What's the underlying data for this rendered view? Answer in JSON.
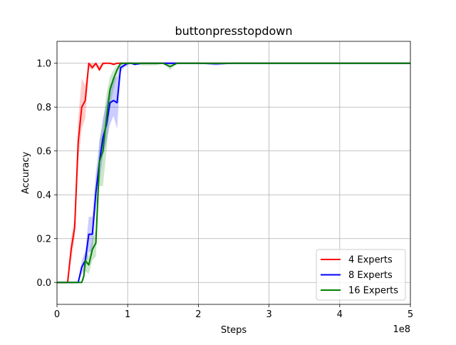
{
  "chart_data": {
    "type": "line",
    "title": "buttonpresstopdown",
    "xlabel": "Steps",
    "ylabel": "Accuracy",
    "x_scale_label": "1e8",
    "x_unit_multiplier": 100000000,
    "xlim": [
      0,
      5
    ],
    "ylim": [
      -0.1,
      1.1
    ],
    "xticks": [
      0,
      1,
      2,
      3,
      4,
      5
    ],
    "xtick_labels": [
      "0",
      "1",
      "2",
      "3",
      "4",
      "5"
    ],
    "yticks": [
      0.0,
      0.2,
      0.4,
      0.6,
      0.8,
      1.0
    ],
    "ytick_labels": [
      "0.0",
      "0.2",
      "0.4",
      "0.6",
      "0.8",
      "1.0"
    ],
    "grid": true,
    "legend_position": "lower-right",
    "series": [
      {
        "name": "4 Experts",
        "color": "#ff0000",
        "x": [
          0,
          0.15,
          0.2,
          0.25,
          0.3,
          0.35,
          0.4,
          0.45,
          0.5,
          0.55,
          0.6,
          0.65,
          0.7,
          0.75,
          0.8,
          0.85,
          0.9,
          0.95,
          1.0,
          1.5,
          2.0,
          2.5,
          3.0,
          3.5,
          4.0,
          4.5,
          5.0
        ],
        "y": [
          0,
          0,
          0.15,
          0.25,
          0.64,
          0.8,
          0.83,
          1.0,
          0.98,
          1.0,
          0.97,
          1.0,
          1.0,
          1.0,
          0.995,
          1.0,
          1.0,
          1.0,
          1.0,
          1.0,
          1.0,
          1.0,
          1.0,
          1.0,
          1.0,
          1.0,
          1.0
        ],
        "y_lower": [
          0,
          0,
          0.1,
          0.2,
          0.55,
          0.7,
          0.75,
          0.98,
          0.97,
          0.99,
          0.96,
          0.99,
          1.0,
          1.0,
          0.99,
          1.0,
          1.0,
          1.0,
          1.0,
          1.0,
          1.0,
          1.0,
          1.0,
          1.0,
          1.0,
          1.0,
          1.0
        ],
        "y_upper": [
          0,
          0,
          0.2,
          0.3,
          0.75,
          0.93,
          0.9,
          1.0,
          1.0,
          1.0,
          0.99,
          1.0,
          1.0,
          1.0,
          1.0,
          1.0,
          1.0,
          1.0,
          1.0,
          1.0,
          1.0,
          1.0,
          1.0,
          1.0,
          1.0,
          1.0,
          1.0
        ]
      },
      {
        "name": "8 Experts",
        "color": "#0000ff",
        "x": [
          0,
          0.3,
          0.35,
          0.4,
          0.45,
          0.5,
          0.55,
          0.6,
          0.65,
          0.7,
          0.75,
          0.8,
          0.85,
          0.9,
          0.95,
          1.0,
          1.05,
          1.1,
          1.2,
          1.5,
          2.0,
          2.25,
          2.5,
          3.0,
          3.5,
          4.0,
          4.5,
          5.0
        ],
        "y": [
          0,
          0,
          0.07,
          0.1,
          0.22,
          0.22,
          0.41,
          0.55,
          0.66,
          0.72,
          0.82,
          0.83,
          0.82,
          0.98,
          0.99,
          1.0,
          1.0,
          0.995,
          1.0,
          1.0,
          1.0,
          0.998,
          1.0,
          1.0,
          1.0,
          1.0,
          1.0,
          1.0
        ],
        "y_lower": [
          0,
          0,
          0.04,
          0.06,
          0.14,
          0.14,
          0.33,
          0.45,
          0.58,
          0.64,
          0.72,
          0.76,
          0.7,
          0.96,
          0.98,
          0.99,
          1.0,
          0.99,
          1.0,
          1.0,
          1.0,
          0.99,
          1.0,
          1.0,
          1.0,
          1.0,
          1.0,
          1.0
        ],
        "y_upper": [
          0,
          0,
          0.1,
          0.14,
          0.3,
          0.3,
          0.5,
          0.64,
          0.75,
          0.82,
          0.9,
          0.93,
          0.94,
          1.0,
          1.0,
          1.0,
          1.0,
          1.0,
          1.0,
          1.0,
          1.0,
          1.0,
          1.0,
          1.0,
          1.0,
          1.0,
          1.0,
          1.0
        ]
      },
      {
        "name": "16 Experts",
        "color": "#008000",
        "x": [
          0,
          0.35,
          0.38,
          0.4,
          0.45,
          0.5,
          0.55,
          0.6,
          0.65,
          0.7,
          0.75,
          0.8,
          0.85,
          0.9,
          0.95,
          1.0,
          1.2,
          1.4,
          1.5,
          1.6,
          1.7,
          2.0,
          2.5,
          3.0,
          3.5,
          4.0,
          4.5,
          5.0
        ],
        "y": [
          0,
          0,
          0.03,
          0.1,
          0.08,
          0.15,
          0.18,
          0.55,
          0.6,
          0.75,
          0.88,
          0.93,
          0.97,
          1.0,
          1.0,
          1.0,
          1.0,
          1.0,
          1.0,
          0.985,
          1.0,
          1.0,
          1.0,
          1.0,
          1.0,
          1.0,
          1.0,
          1.0
        ],
        "y_lower": [
          0,
          0,
          0.01,
          0.05,
          0.04,
          0.1,
          0.12,
          0.44,
          0.44,
          0.6,
          0.8,
          0.88,
          0.95,
          0.99,
          1.0,
          1.0,
          0.99,
          0.99,
          1.0,
          0.97,
          1.0,
          1.0,
          1.0,
          1.0,
          1.0,
          1.0,
          1.0,
          1.0
        ],
        "y_upper": [
          0,
          0,
          0.05,
          0.14,
          0.12,
          0.2,
          0.24,
          0.65,
          0.72,
          0.86,
          0.94,
          0.97,
          0.99,
          1.0,
          1.0,
          1.0,
          1.0,
          1.0,
          1.0,
          1.0,
          1.0,
          1.0,
          1.0,
          1.0,
          1.0,
          1.0,
          1.0,
          1.0
        ]
      }
    ]
  }
}
